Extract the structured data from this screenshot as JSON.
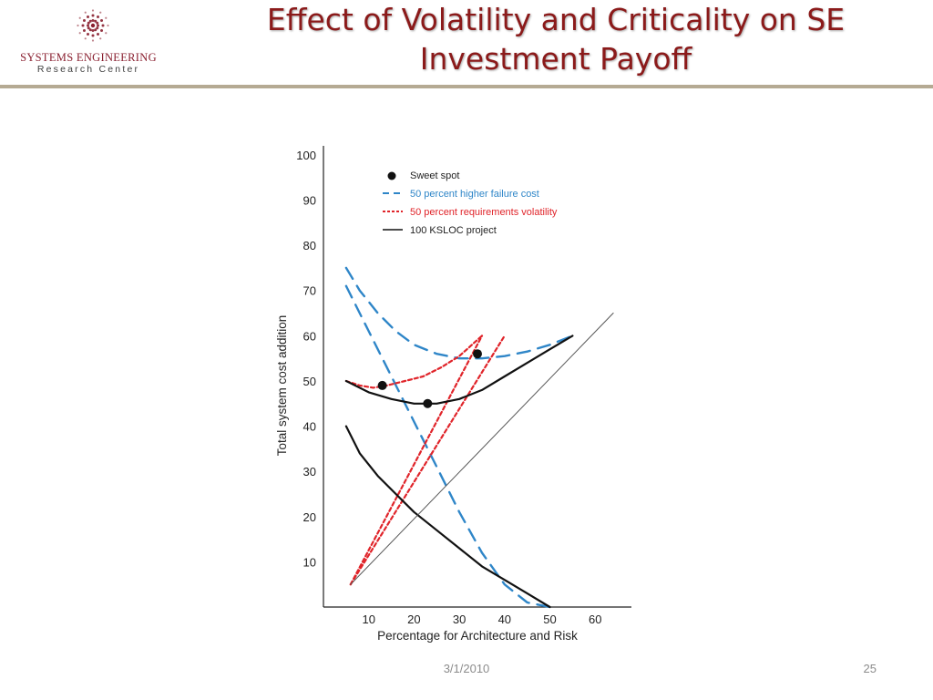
{
  "logo": {
    "line1": "SYSTEMS ENGINEERING",
    "line2": "Research Center",
    "mark_color": "#8a2030"
  },
  "title": "Effect of Volatility and Criticality on  SE\nInvestment Payoff",
  "footer": {
    "date": "3/1/2010",
    "page": "25"
  },
  "colors": {
    "title": "#8b1a1a",
    "rule": "#b5aa93",
    "blue": "#2f86c8",
    "red": "#e0242a",
    "black": "#111111",
    "gray": "#555555"
  },
  "chart_data": {
    "type": "line",
    "xlabel": "Percentage for Architecture and Risk",
    "ylabel": "Total system cost addition",
    "xlim": [
      0,
      68
    ],
    "ylim": [
      0,
      102
    ],
    "xticks": [
      10,
      20,
      30,
      40,
      50,
      60
    ],
    "yticks": [
      10,
      20,
      30,
      40,
      50,
      60,
      70,
      80,
      90,
      100
    ],
    "legend_position": "top-left",
    "legend": [
      {
        "label": "Sweet spot",
        "style": "dot",
        "color": "#111111"
      },
      {
        "label": "50 percent higher failure cost",
        "style": "dashed",
        "color": "#2f86c8"
      },
      {
        "label": "50 percent requirements volatility",
        "style": "dotted",
        "color": "#e0242a"
      },
      {
        "label": "100 KSLOC project",
        "style": "solid",
        "color": "#111111"
      }
    ],
    "series": [
      {
        "style": "dashed",
        "color": "#2f86c8",
        "points": [
          [
            5,
            75
          ],
          [
            8,
            70
          ],
          [
            12,
            65
          ],
          [
            16,
            61
          ],
          [
            20,
            58
          ],
          [
            25,
            56
          ],
          [
            30,
            55
          ],
          [
            35,
            55
          ],
          [
            40,
            55.5
          ],
          [
            45,
            56.5
          ],
          [
            50,
            58
          ],
          [
            55,
            60
          ]
        ]
      },
      {
        "style": "dashed",
        "color": "#2f86c8",
        "points": [
          [
            5,
            71
          ],
          [
            10,
            61
          ],
          [
            15,
            51
          ],
          [
            20,
            41
          ],
          [
            25,
            31
          ],
          [
            30,
            21
          ],
          [
            35,
            12
          ],
          [
            40,
            5
          ],
          [
            45,
            1
          ],
          [
            50,
            0
          ]
        ]
      },
      {
        "style": "dotted",
        "color": "#e0242a",
        "points": [
          [
            5,
            50
          ],
          [
            8,
            49
          ],
          [
            11,
            48.5
          ],
          [
            14,
            49
          ],
          [
            18,
            50
          ],
          [
            22,
            51
          ],
          [
            26,
            53
          ],
          [
            30,
            55.5
          ],
          [
            35,
            60
          ]
        ]
      },
      {
        "style": "dotted",
        "color": "#e0242a",
        "points": [
          [
            6,
            5
          ],
          [
            40,
            60
          ]
        ]
      },
      {
        "style": "dotted",
        "color": "#e0242a",
        "points": [
          [
            6,
            5
          ],
          [
            35,
            60
          ]
        ]
      },
      {
        "style": "solid",
        "color": "#111111",
        "points": [
          [
            5,
            50
          ],
          [
            10,
            47.5
          ],
          [
            15,
            46
          ],
          [
            20,
            45
          ],
          [
            25,
            45
          ],
          [
            30,
            46
          ],
          [
            35,
            48
          ],
          [
            40,
            51
          ],
          [
            45,
            54
          ],
          [
            50,
            57
          ],
          [
            55,
            60
          ]
        ]
      },
      {
        "style": "solid",
        "color": "#111111",
        "points": [
          [
            5,
            40
          ],
          [
            8,
            34
          ],
          [
            12,
            29
          ],
          [
            16,
            25
          ],
          [
            20,
            21
          ],
          [
            25,
            17
          ],
          [
            30,
            13
          ],
          [
            35,
            9
          ],
          [
            40,
            6
          ],
          [
            45,
            3
          ],
          [
            50,
            0
          ]
        ]
      },
      {
        "style": "thin",
        "color": "#555555",
        "points": [
          [
            6,
            5
          ],
          [
            64,
            65
          ]
        ]
      }
    ],
    "sweet_spots": [
      [
        13,
        49
      ],
      [
        23,
        45
      ],
      [
        34,
        56
      ]
    ]
  }
}
